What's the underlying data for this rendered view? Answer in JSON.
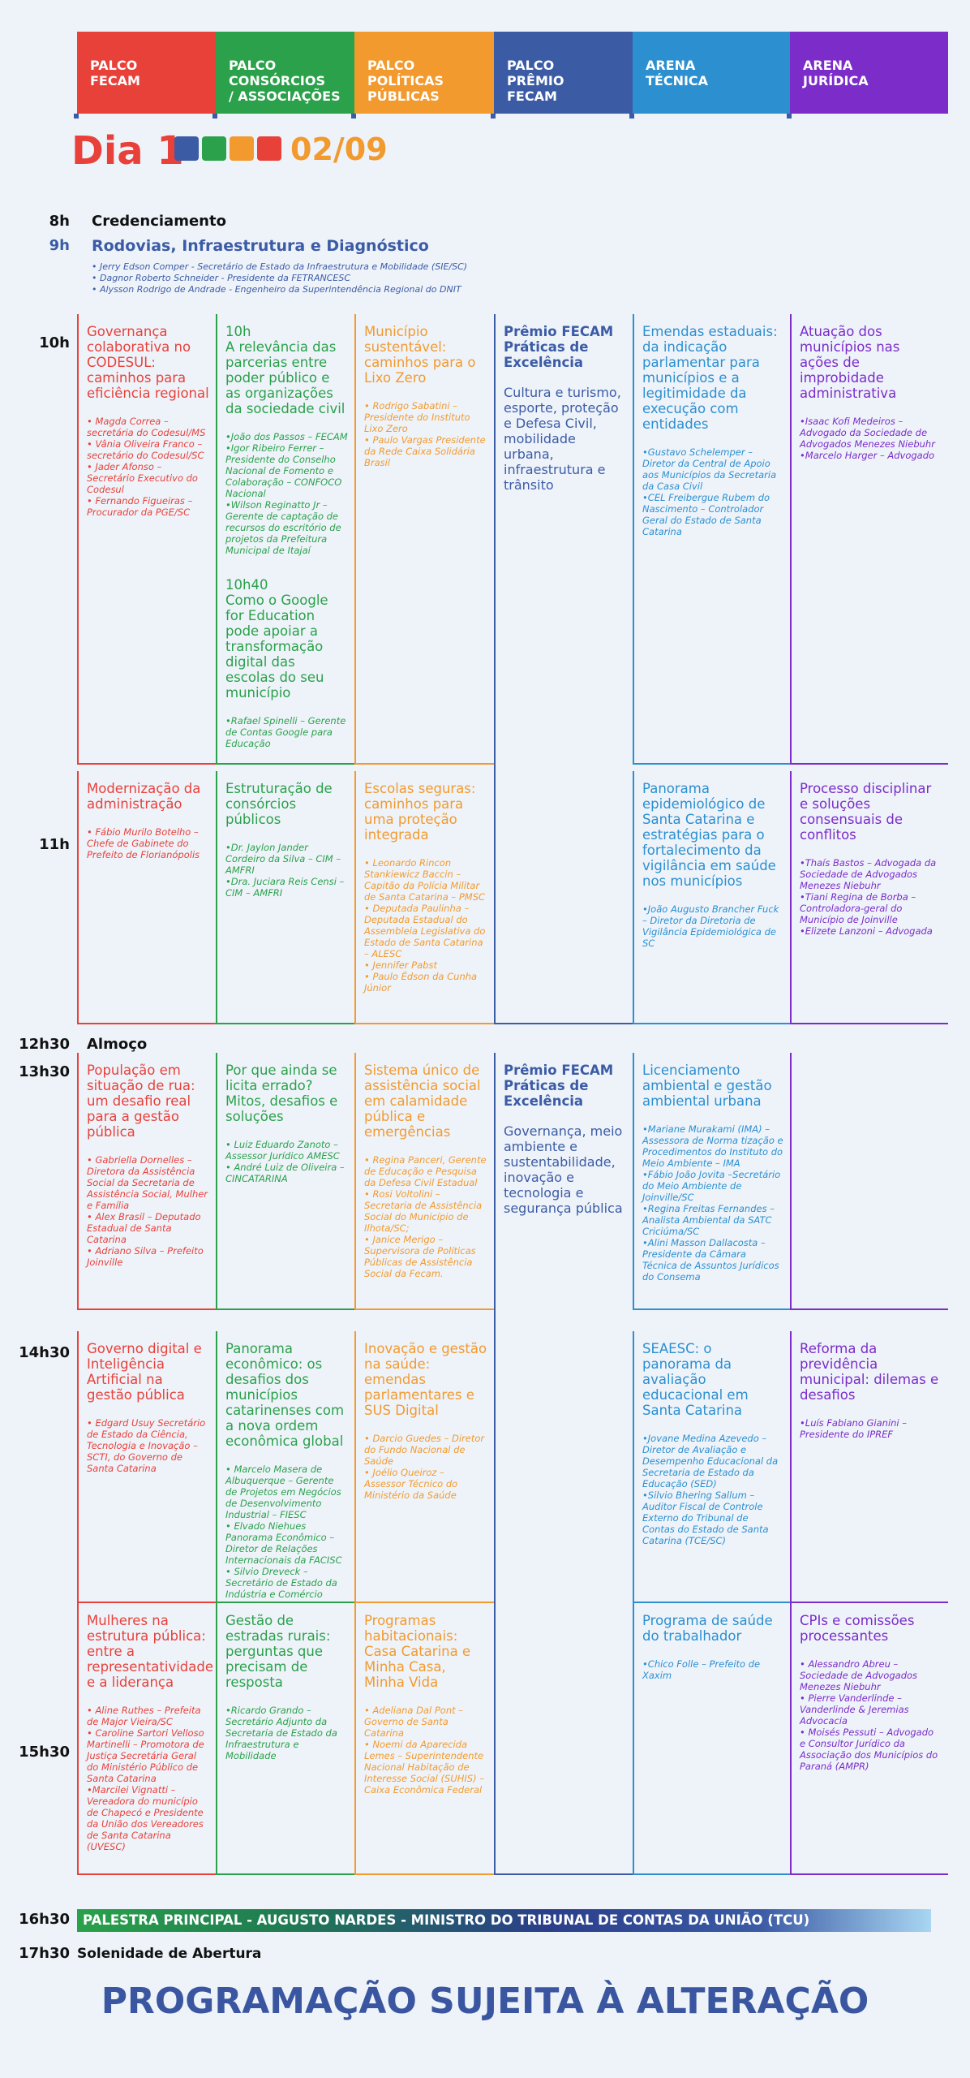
{
  "header": {
    "columns": [
      [
        "PALCO",
        "FECAM"
      ],
      [
        "PALCO",
        "CONSÓRCIOS",
        "/ ASSOCIAÇÕES"
      ],
      [
        "PALCO",
        "POLÍTICAS",
        "PÚBLICAS"
      ],
      [
        "PALCO",
        "PRÊMIO",
        "FECAM"
      ],
      [
        "ARENA",
        "TÉCNICA"
      ],
      [
        "ARENA",
        "JURÍDICA"
      ]
    ]
  },
  "day": {
    "label": "Dia 1",
    "date": "02/09"
  },
  "opening": [
    {
      "time": "8h",
      "title": "Credenciamento"
    },
    {
      "time": "9h",
      "title": "Rodovias, Infraestrutura e Diagnóstico",
      "speakers": [
        "• Jerry Edson Comper - Secretário de Estado da Infraestrutura e Mobilidade (SIE/SC)",
        "• Dagnor Roberto Schneider - Presidente da FETRANCESC",
        "• Alysson Rodrigo de Andrade - Engenheiro da Superintendência Regional do DNIT"
      ]
    }
  ],
  "grid": {
    "rows": [
      {
        "time": "10h",
        "cells": [
          {
            "sessions": [
              {
                "title": "Governança colaborativa no CODESUL: caminhos para eficiência regional",
                "speakers": [
                  "• Magda Correa – secretária do Codesul/MS",
                  "• Vânia Oliveira Franco – secretário do Codesul/SC",
                  "• Jader Afonso – Secretário Executivo do Codesul",
                  "• Fernando Figueiras – Procurador da PGE/SC"
                ]
              }
            ]
          },
          {
            "sessions": [
              {
                "time": "10h",
                "title": "A relevância das parcerias entre poder público e as organizações da sociedade civil",
                "speakers": [
                  "•João dos Passos – FECAM",
                  "•Igor Ribeiro Ferrer – Presidente do Conselho Nacional de Fomento e Colaboração – CONFOCO Nacional",
                  "•Wilson Reginatto Jr – Gerente de captação de recursos do escritório de projetos da Prefeitura Municipal de Itajaí"
                ]
              },
              {
                "time": "10h40",
                "title": "Como o Google for Education pode apoiar a transformação digital das escolas do seu município",
                "speakers": [
                  "•Rafael Spinelli – Gerente de Contas Google para Educação"
                ]
              }
            ]
          },
          {
            "sessions": [
              {
                "title": "Município sustentável: caminhos para o Lixo Zero",
                "speakers": [
                  "• Rodrigo Sabatini – Presidente do Instituto Lixo Zero",
                  "• Paulo Vargas Presidente da Rede Caixa Solidária Brasil"
                ]
              }
            ]
          },
          {
            "sessions": [
              {
                "title": "Prêmio FECAM Práticas de Excelência",
                "subtitle": "Cultura e turismo, esporte, proteção e Defesa Civil, mobilidade urbana, infraestrutura e trânsito"
              }
            ]
          },
          {
            "sessions": [
              {
                "title": "Emendas estaduais: da indicação parlamentar para municípios e a legitimidade da execução com entidades",
                "speakers": [
                  "•Gustavo Schelemper – Diretor da Central de Apoio aos Municípios da Secretaria da Casa Civil",
                  "•CEL Freibergue Rubem do Nascimento – Controlador Geral do Estado de Santa Catarina"
                ]
              }
            ]
          },
          {
            "sessions": [
              {
                "title": "Atuação dos municípios nas ações de improbidade administrativa",
                "speakers": [
                  "•Isaac Kofi Medeiros – Advogado da Sociedade de Advogados Menezes Niebuhr",
                  "•Marcelo Harger – Advogado"
                ]
              }
            ]
          }
        ]
      },
      {
        "time": "11h",
        "cells": [
          {
            "sessions": [
              {
                "title": "Modernização da administração",
                "speakers": [
                  "• Fábio Murilo Botelho – Chefe de Gabinete do Prefeito de Florianópolis"
                ]
              }
            ]
          },
          {
            "sessions": [
              {
                "title": "Estruturação de consórcios públicos",
                "speakers": [
                  "•Dr. Jaylon Jander Cordeiro da Silva – CIM – AMFRI",
                  "•Dra. Juciara Reis Censi – CIM – AMFRI"
                ]
              }
            ]
          },
          {
            "sessions": [
              {
                "title": "Escolas seguras: caminhos para uma proteção integrada",
                "speakers": [
                  "• Leonardo Rincon Stankiewicz Baccin – Capitão da Polícia Militar de Santa Catarina – PMSC",
                  "• Deputada Paulinha – Deputada Estadual do Assembleia Legislativa do Estado de Santa Catarina – ALESC",
                  "• Jennifer Pabst",
                  "• Paulo Édson da Cunha Júnior"
                ]
              }
            ]
          },
          null,
          {
            "sessions": [
              {
                "title": "Panorama epidemiológico de Santa Catarina e estratégias para o fortalecimento da vigilância em saúde nos municípios",
                "speakers": [
                  "•João Augusto Brancher Fuck – Diretor da Diretoria de Vigilância Epidemiológica de SC"
                ]
              }
            ]
          },
          {
            "sessions": [
              {
                "title": "Processo disciplinar e soluções consensuais de conflitos",
                "speakers": [
                  "•Thaís Bastos – Advogada da Sociedade de Advogados Menezes Niebuhr",
                  "•Tiani Regina de Borba – Controladora-geral do Município de Joinville",
                  "•Elizete Lanzoni – Advogada"
                ]
              }
            ]
          }
        ]
      },
      {
        "time": "13h30",
        "cells": [
          {
            "sessions": [
              {
                "title": "População em situação de rua: um desafio real para a gestão pública",
                "speakers": [
                  "• Gabriella Dornelles – Diretora da Assistência Social da Secretaria de Assistência Social, Mulher e Família",
                  "• Alex Brasil – Deputado Estadual de Santa Catarina",
                  "• Adriano Silva – Prefeito Joinville"
                ]
              }
            ]
          },
          {
            "sessions": [
              {
                "title": "Por que ainda se licita errado? Mitos, desafios e soluções",
                "speakers": [
                  "• Luiz Eduardo Zanoto – Assessor Jurídico AMESC",
                  "• André Luiz de Oliveira – CINCATARINA"
                ]
              }
            ]
          },
          {
            "sessions": [
              {
                "title": "Sistema único de assistência social em calamidade pública e emergências",
                "speakers": [
                  "• Regina Panceri, Gerente de Educação e Pesquisa da Defesa Civil Estadual",
                  "• Rosi Voltolini – Secretaria de Assistência Social do Município de Ilhota/SC;",
                  "• Janice Merigo – Supervisora de Políticas Públicas de Assistência Social da Fecam."
                ]
              }
            ]
          },
          {
            "sessions": [
              {
                "title": "Prêmio FECAM Práticas de Excelência",
                "subtitle": "Governança, meio ambiente e sustentabilidade, inovação e tecnologia e segurança pública"
              }
            ]
          },
          {
            "sessions": [
              {
                "title": "Licenciamento ambiental e gestão ambiental urbana",
                "speakers": [
                  "•Mariane Murakami (IMA) – Assessora de Norma tização e Procedimentos do Instituto do Meio Ambiente – IMA",
                  "•Fábio João Jovita –Secretário do Meio Ambiente de Joinville/SC",
                  "•Regina Freitas Fernandes – Analista Ambiental da SATC Criciúma/SC",
                  "•Alini Masson Dallacosta – Presidente da Câmara Técnica de Assuntos Jurídicos do Consema"
                ]
              }
            ]
          },
          null
        ]
      },
      {
        "time": "14h30",
        "cells": [
          {
            "sessions": [
              {
                "title": "Governo digital e Inteligência Artificial na gestão pública",
                "speakers": [
                  "• Edgard Usuy Secretário de Estado da Ciência, Tecnologia e Inovação – SCTI, do Governo de Santa Catarina"
                ]
              }
            ]
          },
          {
            "sessions": [
              {
                "title": "Panorama econômico: os desafios dos municípios catarinenses com a nova ordem econômica global",
                "speakers": [
                  "• Marcelo Masera de Albuquerque – Gerente de Projetos em Negócios de Desenvolvimento Industrial – FIESC",
                  "• Elvado Niehues Panorama Econômico – Diretor de Relações Internacionais da FACISC",
                  "• Silvio Dreveck – Secretário de Estado da Indústria e Comércio"
                ]
              }
            ]
          },
          {
            "sessions": [
              {
                "title": "Inovação e gestão na saúde: emendas parlamentares e SUS Digital",
                "speakers": [
                  "• Darcio Guedes – Diretor do Fundo Nacional de Saúde",
                  "• Joélio Queiroz – Assessor Técnico do Ministério da Saúde"
                ]
              }
            ]
          },
          null,
          {
            "sessions": [
              {
                "title": "SEAESC: o panorama da avaliação educacional em Santa Catarina",
                "speakers": [
                  "•Jovane Medina Azevedo – Diretor de Avaliação e Desempenho Educacional da Secretaria de Estado da Educação (SED)",
                  "•Silvio Bhering Sallum – Auditor Fiscal de Controle Externo do Tribunal de Contas do Estado de Santa Catarina (TCE/SC)"
                ]
              }
            ]
          },
          {
            "sessions": [
              {
                "title": "Reforma da previdência municipal: dilemas e desafios",
                "speakers": [
                  "•Luís Fabiano Gianini – Presidente do IPREF"
                ]
              }
            ]
          }
        ]
      },
      {
        "time": "15h30",
        "cells": [
          {
            "sessions": [
              {
                "title": "Mulheres na estrutura pública: entre a representatividade e a liderança",
                "speakers": [
                  "• Aline Ruthes – Prefeita de Major Vieira/SC",
                  "• Caroline Sartori Velloso Martinelli – Promotora de Justiça Secretária Geral do Ministério Público de Santa Catarina",
                  "•Marcilei Vignatti – Vereadora do município de Chapecó e Presidente da União dos Vereadores de Santa Catarina (UVESC)"
                ]
              }
            ]
          },
          {
            "sessions": [
              {
                "title": "Gestão de estradas rurais: perguntas que precisam de resposta",
                "speakers": [
                  "•Ricardo Grando – Secretário Adjunto da Secretaria de Estado da Infraestrutura e Mobilidade"
                ]
              }
            ]
          },
          {
            "sessions": [
              {
                "title": "Programas habitacionais: Casa Catarina e Minha Casa, Minha Vida",
                "speakers": [
                  "• Adeliana Dal Pont – Governo de Santa Catarina",
                  "• Noemi da Aparecida Lemes – Superintendente Nacional Habitação de Interesse Social (SUHIS) – Caixa Econômica Federal"
                ]
              }
            ]
          },
          null,
          {
            "sessions": [
              {
                "title": "Programa de saúde do trabalhador",
                "speakers": [
                  "•Chico Folle – Prefeito de Xaxim"
                ]
              }
            ]
          },
          {
            "sessions": [
              {
                "title": "CPIs e comissões processantes",
                "speakers": [
                  "• Alessandro Abreu – Sociedade de Advogados Menezes Niebuhr",
                  "• Pierre Vanderlinde – Vanderlinde & Jeremias Advocacia",
                  "• Moisés Pessuti – Advogado e Consultor Jurídico da Associação dos Municípios do Paraná (AMPR)"
                ]
              }
            ]
          }
        ]
      }
    ]
  },
  "lunch": {
    "time": "12h30",
    "title": "Almoço"
  },
  "closing": [
    {
      "time": "16h30",
      "title": "PALESTRA PRINCIPAL - AUGUSTO NARDES - MINISTRO DO TRIBUNAL DE CONTAS DA UNIÃO (TCU)"
    },
    {
      "time": "17h30",
      "title": "Solenidade de Abertura"
    }
  ],
  "footer": "PROGRAMAÇÃO SUJEITA À ALTERAÇÃO"
}
